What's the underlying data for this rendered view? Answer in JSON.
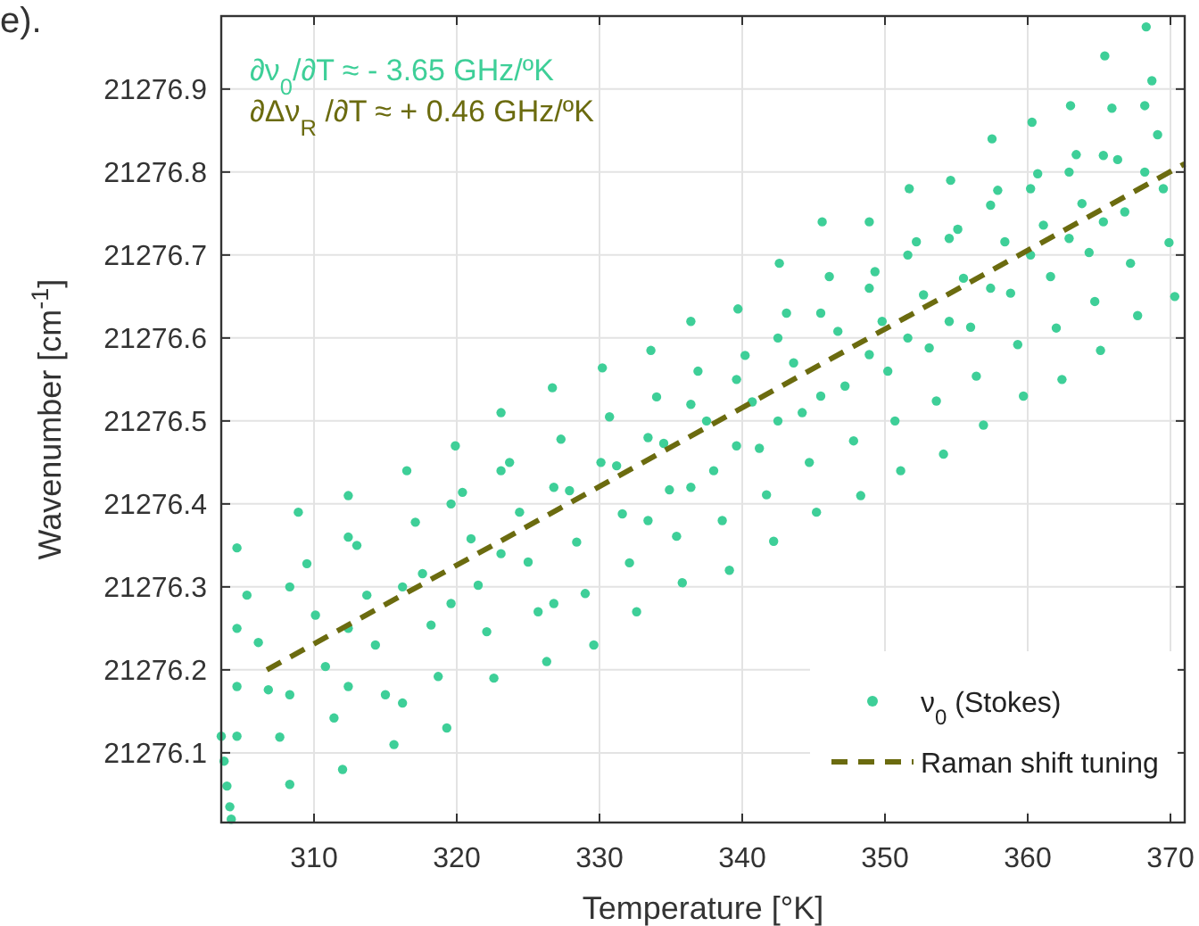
{
  "chart_data": {
    "type": "scatter",
    "xlabel": "Temperature [°K]",
    "ylabel": "Wavenumber [cm$^{-1}$]",
    "annotations": [
      "∂ν$_{0}$/∂T ≈ - 3.65 GHz/ºK",
      "∂Δν$_{R}$ /∂T ≈ + 0.46 GHz/ºK",
      "e)."
    ],
    "xlim": [
      303.5,
      371
    ],
    "ylim": [
      21276.016,
      21276.988
    ],
    "xticks": [
      310,
      320,
      330,
      340,
      350,
      360,
      370
    ],
    "yticks": [
      {
        "value": 21276.1,
        "label": "21276.1"
      },
      {
        "value": 21276.2,
        "label": "21276.2"
      },
      {
        "value": 21276.3,
        "label": "21276.3"
      },
      {
        "value": 21276.4,
        "label": "21276.4"
      },
      {
        "value": 21276.5,
        "label": "21276.5"
      },
      {
        "value": 21276.6,
        "label": "21276.6"
      },
      {
        "value": 21276.7,
        "label": "21276.7"
      },
      {
        "value": 21276.8,
        "label": "21276.8"
      },
      {
        "value": 21276.9,
        "label": "21276.9"
      }
    ],
    "grid": true,
    "legend": "bottom right",
    "series": [
      {
        "name": "ν$_{0}$ (Stokes)",
        "color": "#3ecf98",
        "marker": "circle",
        "x": [
          303.5,
          303.7,
          303.9,
          304.1,
          304.2,
          304.6,
          305.3,
          306.1,
          306.8,
          307.6,
          308.3,
          308.9,
          309.5,
          310.1,
          310.8,
          311.4,
          312.0,
          312.4,
          313.0,
          313.7,
          314.3,
          315.0,
          315.6,
          316.5,
          317.1,
          317.6,
          318.2,
          318.7,
          319.3,
          319.9,
          320.4,
          321.0,
          321.5,
          322.1,
          322.6,
          323.1,
          323.7,
          324.4,
          325.0,
          325.7,
          326.3,
          326.7,
          327.3,
          327.9,
          328.4,
          329.0,
          329.6,
          330.2,
          330.7,
          331.2,
          331.6,
          332.1,
          332.6,
          333.6,
          334.0,
          334.5,
          334.9,
          335.4,
          335.8,
          336.4,
          336.9,
          337.5,
          338.0,
          338.6,
          339.1,
          339.7,
          340.2,
          340.7,
          341.2,
          341.7,
          342.2,
          342.6,
          343.1,
          343.6,
          344.2,
          344.7,
          345.2,
          345.6,
          346.1,
          346.7,
          347.2,
          347.8,
          348.3,
          348.9,
          349.3,
          349.8,
          350.2,
          350.7,
          351.1,
          351.7,
          352.2,
          352.7,
          353.1,
          353.6,
          354.1,
          354.6,
          355.1,
          355.5,
          356.0,
          356.4,
          356.9,
          357.5,
          357.9,
          358.4,
          358.8,
          359.3,
          359.7,
          360.3,
          360.7,
          361.1,
          361.6,
          362.0,
          362.4,
          363.0,
          363.4,
          363.8,
          364.3,
          364.7,
          365.1,
          365.4,
          365.9,
          366.3,
          366.8,
          367.2,
          367.7,
          368.3,
          368.7,
          369.1,
          369.5,
          369.9,
          370.3,
          304.6,
          304.6,
          304.6,
          308.3,
          308.3,
          312.4,
          312.4,
          312.4,
          316.2,
          316.2,
          319.6,
          319.6,
          323.1,
          323.1,
          326.8,
          326.8,
          330.1,
          333.4,
          333.4,
          336.4,
          336.4,
          339.6,
          339.6,
          342.5,
          342.5,
          345.5,
          345.5,
          348.9,
          348.9,
          351.6,
          351.6,
          354.5,
          354.5,
          357.4,
          357.4,
          360.2,
          360.2,
          362.9,
          362.9,
          365.3,
          365.3,
          368.2,
          368.2
        ],
        "values": [
          21276.12,
          21276.09,
          21276.06,
          21276.035,
          21276.02,
          21276.347,
          21276.29,
          21276.233,
          21276.176,
          21276.119,
          21276.062,
          21276.39,
          21276.328,
          21276.266,
          21276.204,
          21276.142,
          21276.08,
          21276.41,
          21276.35,
          21276.29,
          21276.23,
          21276.17,
          21276.11,
          21276.44,
          21276.378,
          21276.316,
          21276.254,
          21276.192,
          21276.13,
          21276.47,
          21276.414,
          21276.358,
          21276.302,
          21276.246,
          21276.19,
          21276.51,
          21276.45,
          21276.39,
          21276.33,
          21276.27,
          21276.21,
          21276.54,
          21276.478,
          21276.416,
          21276.354,
          21276.292,
          21276.23,
          21276.564,
          21276.505,
          21276.446,
          21276.388,
          21276.329,
          21276.27,
          21276.585,
          21276.529,
          21276.473,
          21276.417,
          21276.361,
          21276.305,
          21276.62,
          21276.56,
          21276.5,
          21276.44,
          21276.38,
          21276.32,
          21276.635,
          21276.579,
          21276.523,
          21276.467,
          21276.411,
          21276.355,
          21276.69,
          21276.63,
          21276.57,
          21276.51,
          21276.45,
          21276.39,
          21276.74,
          21276.674,
          21276.608,
          21276.542,
          21276.476,
          21276.41,
          21276.74,
          21276.68,
          21276.62,
          21276.56,
          21276.5,
          21276.44,
          21276.78,
          21276.716,
          21276.652,
          21276.588,
          21276.524,
          21276.46,
          21276.79,
          21276.731,
          21276.672,
          21276.613,
          21276.554,
          21276.495,
          21276.84,
          21276.778,
          21276.716,
          21276.654,
          21276.592,
          21276.53,
          21276.86,
          21276.798,
          21276.736,
          21276.674,
          21276.612,
          21276.55,
          21276.88,
          21276.821,
          21276.762,
          21276.703,
          21276.644,
          21276.585,
          21276.94,
          21276.877,
          21276.815,
          21276.752,
          21276.69,
          21276.627,
          21276.975,
          21276.91,
          21276.845,
          21276.78,
          21276.715,
          21276.65,
          21276.25,
          21276.18,
          21276.12,
          21276.3,
          21276.17,
          21276.36,
          21276.25,
          21276.18,
          21276.3,
          21276.16,
          21276.4,
          21276.28,
          21276.44,
          21276.34,
          21276.42,
          21276.28,
          21276.45,
          21276.48,
          21276.38,
          21276.52,
          21276.42,
          21276.55,
          21276.47,
          21276.6,
          21276.5,
          21276.63,
          21276.53,
          21276.66,
          21276.58,
          21276.7,
          21276.6,
          21276.72,
          21276.62,
          21276.76,
          21276.66,
          21276.78,
          21276.7,
          21276.8,
          21276.72,
          21276.82,
          21276.74,
          21276.88,
          21276.8
        ]
      },
      {
        "type": "line",
        "name": "Raman shift tuning",
        "color": "#6b6b0f",
        "line_style": "dashed",
        "x": [
          306.7,
          371
        ],
        "values": [
          21276.2,
          21276.81
        ]
      }
    ]
  }
}
